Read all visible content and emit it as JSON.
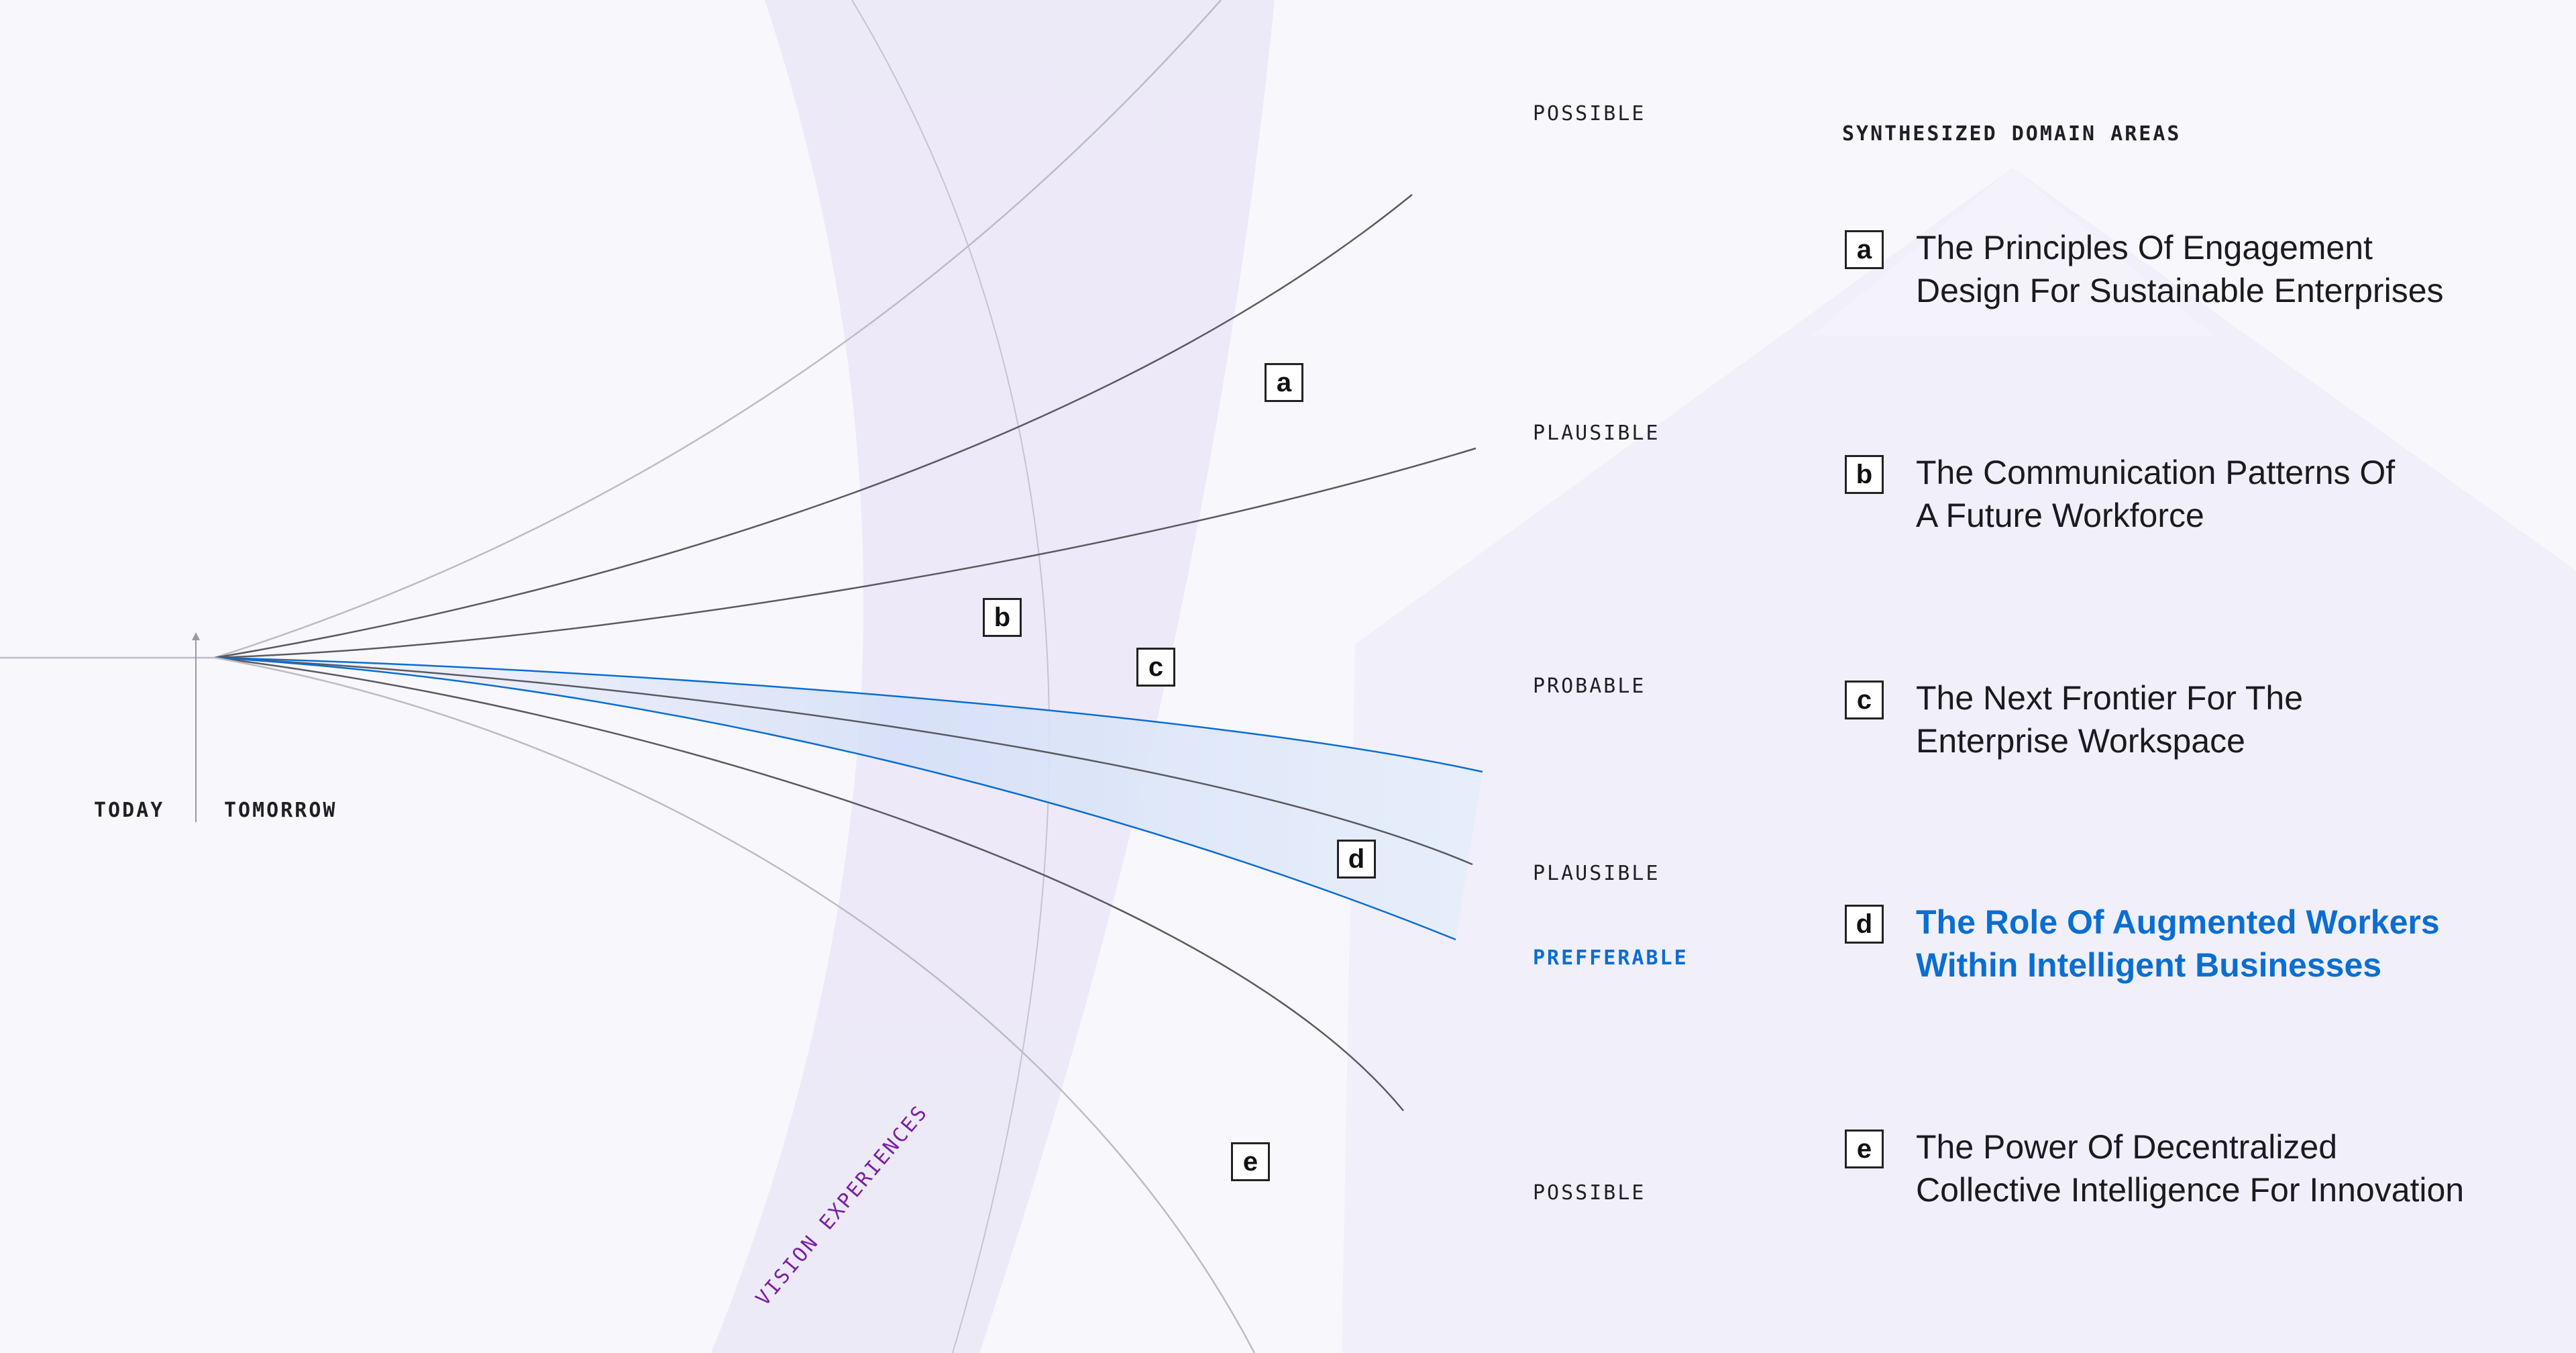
{
  "timeline": {
    "today_label": "TODAY",
    "tomorrow_label": "TOMORROW",
    "arc_label": "VISION EXPERIENCES"
  },
  "scenarios": [
    {
      "label": "POSSIBLE"
    },
    {
      "label": "PLAUSIBLE"
    },
    {
      "label": "PROBABLE"
    },
    {
      "label": "PLAUSIBLE"
    },
    {
      "label": "PREFFERABLE"
    },
    {
      "label": "POSSIBLE"
    }
  ],
  "panel": {
    "title": "SYNTHESIZED DOMAIN AREAS",
    "areas": [
      {
        "letter": "a",
        "line1": "The Principles Of Engagement",
        "line2": "Design For Sustainable Enterprises"
      },
      {
        "letter": "b",
        "line1": "The Communication Patterns Of",
        "line2": "A Future Workforce"
      },
      {
        "letter": "c",
        "line1": "The Next Frontier For The",
        "line2": "Enterprise Workspace"
      },
      {
        "letter": "d",
        "line1": "The Role Of Augmented Workers",
        "line2": "Within Intelligent Businesses"
      },
      {
        "letter": "e",
        "line1": "The Power Of Decentralized",
        "line2": "Collective Intelligence For Innovation"
      }
    ]
  },
  "markers": [
    {
      "letter": "a"
    },
    {
      "letter": "b"
    },
    {
      "letter": "c"
    },
    {
      "letter": "d"
    },
    {
      "letter": "e"
    }
  ],
  "colors": {
    "preferable_accent": "#0a6ed1",
    "arc_label": "#7b1fa2",
    "line": "#5a5a60",
    "outer_line": "#bdbcc4"
  }
}
